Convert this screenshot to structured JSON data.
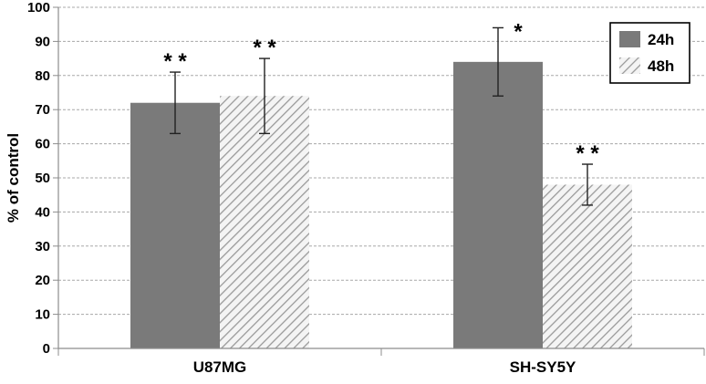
{
  "chart_data": {
    "type": "bar",
    "title": "",
    "xlabel": "",
    "ylabel": "% of control",
    "ylim": [
      0,
      100
    ],
    "yticks": [
      0,
      10,
      20,
      30,
      40,
      50,
      60,
      70,
      80,
      90,
      100
    ],
    "grid": true,
    "legend_position": "top-right",
    "categories": [
      "U87MG",
      "SH-SY5Y"
    ],
    "series": [
      {
        "name": "24h",
        "style": "solid",
        "color": "#7a7a7a",
        "values": [
          72,
          84
        ],
        "error": [
          9,
          10
        ],
        "significance": [
          "* *",
          "*"
        ]
      },
      {
        "name": "48h",
        "style": "hatched",
        "color": "#b5b5b5",
        "values": [
          74,
          48
        ],
        "error": [
          11,
          6
        ],
        "significance": [
          "* *",
          "* *"
        ]
      }
    ]
  }
}
